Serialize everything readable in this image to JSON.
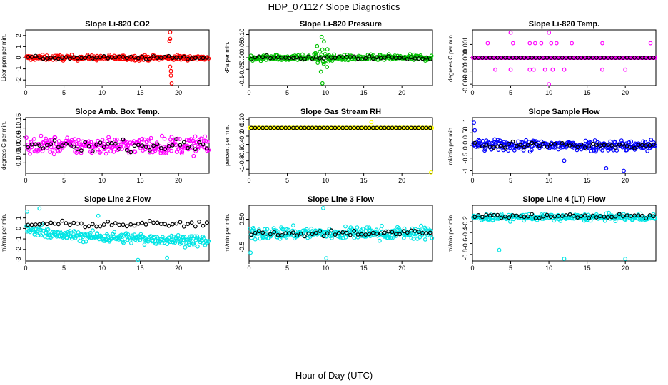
{
  "page_title": "HDP_071127  Slope Diagnostics",
  "x_axis_label": "Hour of Day (UTC)",
  "chart_data": [
    {
      "type": "scatter",
      "title": "Slope Li-820 CO2",
      "ylabel": "Licor ppm per min.",
      "color": "#ff0000",
      "xlim": [
        0,
        24
      ],
      "xticks": [
        0,
        5,
        10,
        15,
        20
      ],
      "ylim": [
        -2.5,
        2.5
      ],
      "yticks": [
        -2,
        -1,
        0,
        1,
        2
      ],
      "spread": 0.22,
      "outliers": [
        [
          18.9,
          2.3
        ],
        [
          18.9,
          1.7
        ],
        [
          18.8,
          1.5
        ],
        [
          18.9,
          -0.8
        ],
        [
          19.0,
          -1.2
        ],
        [
          19.0,
          -1.6
        ],
        [
          19.1,
          -2.3
        ]
      ]
    },
    {
      "type": "scatter",
      "title": "Slope Li-820 Pressure",
      "ylabel": "kPa per min.",
      "color": "#00c000",
      "xlim": [
        0,
        24
      ],
      "xticks": [
        0,
        5,
        10,
        15,
        20
      ],
      "ylim": [
        -0.12,
        0.12
      ],
      "yticks": [
        -0.1,
        -0.05,
        0.0,
        0.05,
        0.1
      ],
      "spread": 0.012,
      "outliers": [
        [
          9.5,
          0.09
        ],
        [
          9.8,
          0.07
        ],
        [
          9.4,
          -0.06
        ],
        [
          9.6,
          -0.11
        ],
        [
          10.2,
          -0.04
        ],
        [
          8.9,
          0.05
        ]
      ]
    },
    {
      "type": "scatter",
      "title": "Slope Li-820 Temp.",
      "ylabel": "degrees C per min.",
      "color": "#ff00ff",
      "xlim": [
        0,
        24
      ],
      "xticks": [
        0,
        5,
        10,
        15,
        20
      ],
      "ylim": [
        -0.0021,
        0.0021
      ],
      "yticks": [
        -0.002,
        -0.001,
        0.0,
        0.001
      ],
      "spread": 0,
      "outliers": [
        [
          5,
          0.0019
        ],
        [
          10,
          0.0019
        ],
        [
          2,
          0.0011
        ],
        [
          5.3,
          0.0011
        ],
        [
          7.5,
          0.0011
        ],
        [
          8.2,
          0.0011
        ],
        [
          9.0,
          0.0011
        ],
        [
          10.3,
          0.0011
        ],
        [
          11,
          0.0011
        ],
        [
          13,
          0.0011
        ],
        [
          17,
          0.0011
        ],
        [
          23.3,
          0.0011
        ],
        [
          3,
          -0.0009
        ],
        [
          5,
          -0.0009
        ],
        [
          7.5,
          -0.0009
        ],
        [
          8,
          -0.0009
        ],
        [
          9.5,
          -0.0009
        ],
        [
          10.5,
          -0.0009
        ],
        [
          12,
          -0.0009
        ],
        [
          17,
          -0.0009
        ],
        [
          20,
          -0.0009
        ],
        [
          10,
          -0.002
        ]
      ]
    },
    {
      "type": "scatter",
      "title": "Slope Amb. Box Temp.",
      "ylabel": "degrees C per min.",
      "color": "#ff00ff",
      "xlim": [
        0,
        24
      ],
      "xticks": [
        0,
        5,
        10,
        15,
        20
      ],
      "ylim": [
        -0.16,
        0.16
      ],
      "yticks": [
        -0.1,
        -0.05,
        0.0,
        0.05,
        0.1,
        0.15
      ],
      "spread": 0.05,
      "outliers": []
    },
    {
      "type": "scatter",
      "title": "Slope Gas Stream RH",
      "ylabel": "percent per min.",
      "color": "#ffff00",
      "xlim": [
        0,
        24
      ],
      "xticks": [
        0,
        5,
        10,
        15,
        20
      ],
      "ylim": [
        -1.1,
        0.25
      ],
      "yticks": [
        -1.0,
        -0.8,
        -0.6,
        -0.4,
        -0.2,
        0.0,
        0.2
      ],
      "spread": 0,
      "outliers": [
        [
          16,
          0.14
        ],
        [
          23.8,
          -1.08
        ]
      ]
    },
    {
      "type": "scatter",
      "title": "Slope Sample Flow",
      "ylabel": "ml/min per min.",
      "color": "#0000ff",
      "xlim": [
        0,
        24
      ],
      "xticks": [
        0,
        5,
        10,
        15,
        20
      ],
      "ylim": [
        -1.1,
        1.1
      ],
      "yticks": [
        -1.0,
        -0.5,
        0.0,
        0.5,
        1.0
      ],
      "spread": 0.22,
      "outliers": [
        [
          0.2,
          0.9
        ],
        [
          0.3,
          0.6
        ],
        [
          19.8,
          -1.0
        ],
        [
          17.5,
          -0.9
        ],
        [
          12,
          -0.6
        ]
      ]
    },
    {
      "type": "scatter",
      "title": "Slope Line 2 Flow",
      "ylabel": "ml/min per min.",
      "color": "#00e5e5",
      "xlim": [
        0,
        24
      ],
      "xticks": [
        0,
        5,
        10,
        15,
        20
      ],
      "ylim": [
        -3.1,
        2.2
      ],
      "yticks": [
        -3,
        -2,
        -1,
        0,
        1
      ],
      "spread": 0.5,
      "outliers": [
        [
          0.2,
          1.6
        ],
        [
          1.8,
          1.9
        ],
        [
          9.5,
          1.2
        ],
        [
          14.7,
          -3.0
        ],
        [
          18.5,
          -2.8
        ]
      ]
    },
    {
      "type": "scatter",
      "title": "Slope Line 3 Flow",
      "ylabel": "ml/min per min.",
      "color": "#00e5e5",
      "xlim": [
        0,
        24
      ],
      "xticks": [
        0,
        5,
        10,
        15,
        20
      ],
      "ylim": [
        -1.0,
        1.0
      ],
      "yticks": [
        -0.5,
        0.5
      ],
      "spread": 0.22,
      "outliers": [
        [
          9.7,
          0.9
        ],
        [
          10.1,
          -0.9
        ],
        [
          0.2,
          -0.7
        ]
      ]
    },
    {
      "type": "scatter",
      "title": "Slope Line 4 (LT) Flow",
      "ylabel": "ml/min per min.",
      "color": "#00e5e5",
      "xlim": [
        0,
        24
      ],
      "xticks": [
        0,
        5,
        10,
        15,
        20
      ],
      "ylim": [
        -0.92,
        0.1
      ],
      "yticks": [
        -0.8,
        -0.6,
        -0.4,
        -0.2
      ],
      "spread": 0.06,
      "outliers": [
        [
          3.5,
          -0.72
        ],
        [
          12,
          -0.88
        ],
        [
          20,
          -0.88
        ]
      ]
    }
  ]
}
